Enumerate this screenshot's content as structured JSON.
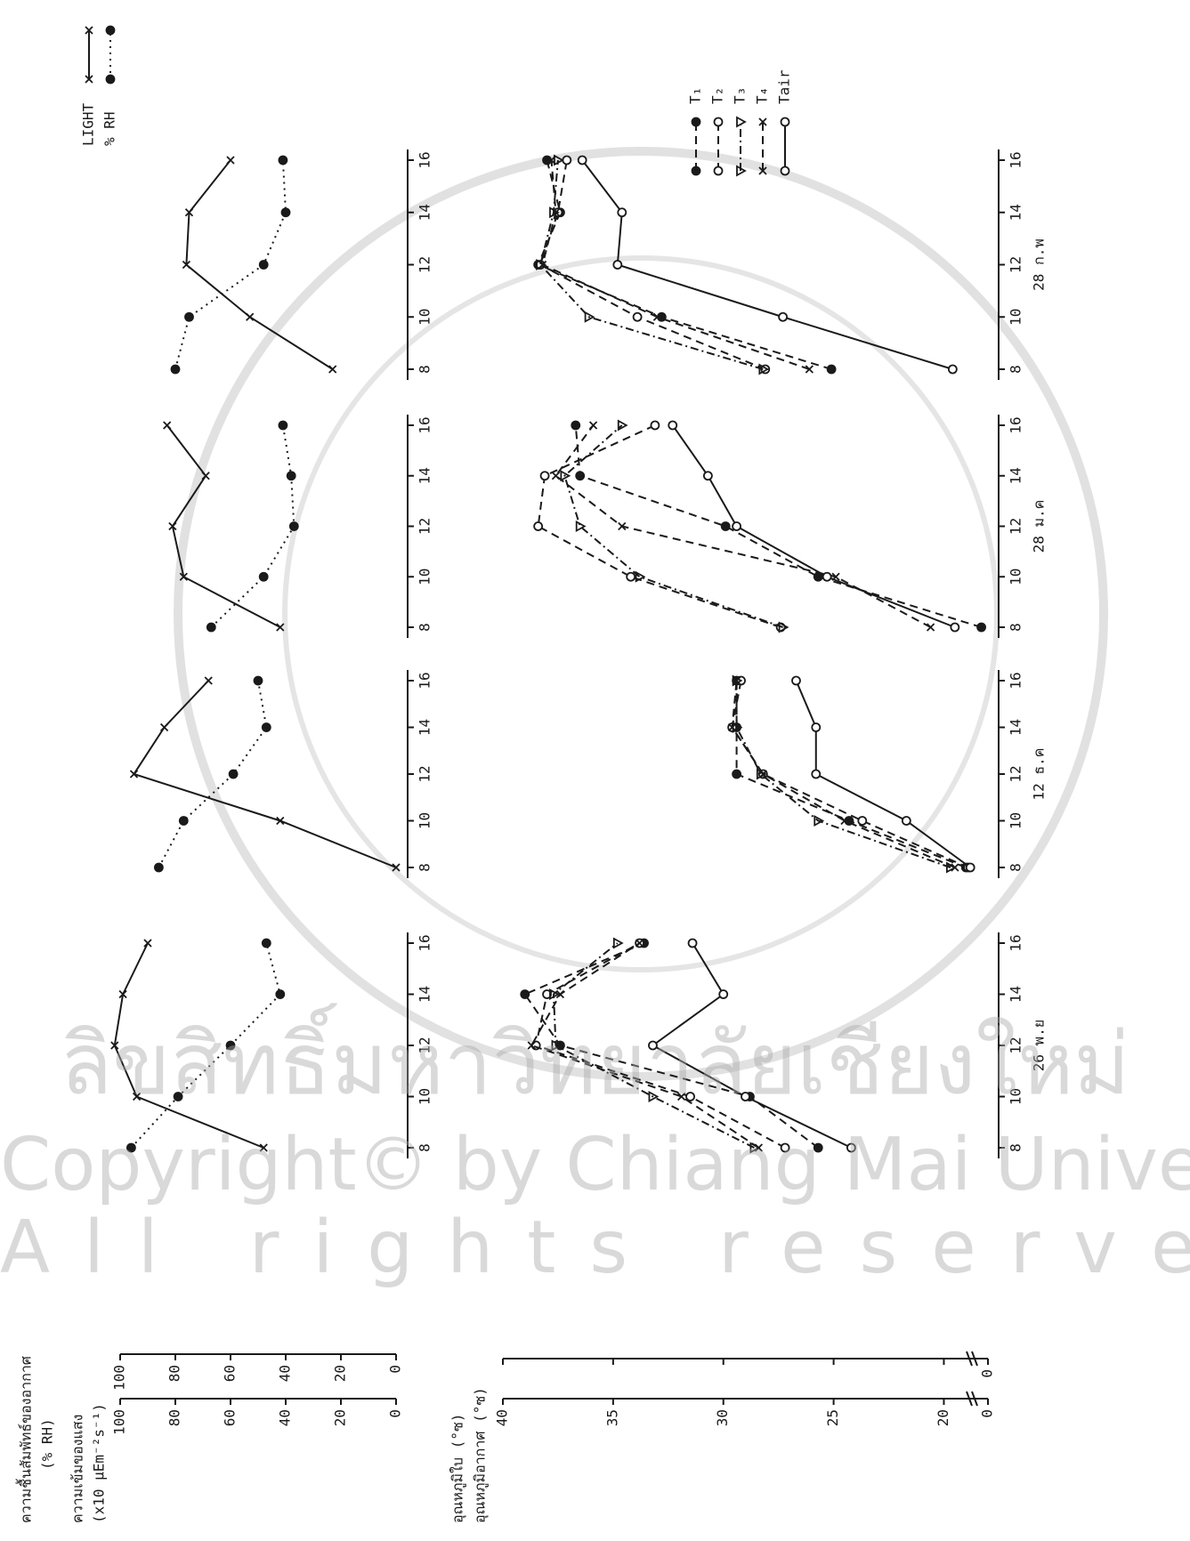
{
  "chart_data": [
    {
      "type": "line",
      "y_title": "ความเข้มของแสง",
      "y_units": "(x10 µEm⁻²s⁻¹)",
      "ylim": [
        0,
        100
      ],
      "yticks": [
        0,
        20,
        40,
        60,
        80,
        100
      ],
      "y2_title": "ความชื้นสัมพัทธ์ของอากาศ",
      "y2_units": "(% RH)",
      "y2lim": [
        0,
        100
      ],
      "y2ticks": [
        0,
        20,
        40,
        60,
        80,
        100
      ],
      "x": [
        8,
        10,
        12,
        14,
        16
      ],
      "xlim": [
        8,
        16
      ],
      "xticks": [
        8,
        10,
        12,
        14,
        16
      ],
      "legend": "top-right",
      "series": [
        {
          "name": "LIGHT",
          "color": "#1a1a1a",
          "dash": "solid",
          "marker": "x",
          "values": [
            [
              48,
              94,
              102,
              99,
              90
            ],
            [
              0,
              42,
              95,
              84,
              68
            ],
            [
              42,
              77,
              81,
              69,
              83
            ],
            [
              23,
              53,
              76,
              75,
              60
            ]
          ]
        },
        {
          "name": "% RH",
          "axis": "y2",
          "color": "#1a1a1a",
          "dash": "dotted",
          "marker": "dot",
          "values": [
            [
              96,
              79,
              60,
              42,
              47
            ],
            [
              86,
              77,
              59,
              47,
              50
            ],
            [
              67,
              48,
              37,
              38,
              41
            ],
            [
              80,
              75,
              48,
              40,
              41
            ]
          ]
        }
      ]
    },
    {
      "type": "line",
      "y_title": "อุณหภูมิใบ (°ซ)",
      "y2_title": "อุณหภูมิอากาศ (°ซ)",
      "ylim": [
        18,
        40
      ],
      "yticks": [
        20,
        25,
        30,
        35,
        40
      ],
      "axis_break_label": "0",
      "x": [
        8,
        10,
        12,
        14,
        16
      ],
      "xlim": [
        8,
        16
      ],
      "xticks": [
        8,
        10,
        12,
        14,
        16
      ],
      "panel_labels": [
        "26 พ.ย",
        "12 ธ.ค",
        "28 ม.ค",
        "28 ก.พ"
      ],
      "legend": "top-right",
      "series": [
        {
          "name": "T₁",
          "color": "#1a1a1a",
          "dash": "dashed",
          "marker": "dot",
          "values": [
            [
              25.7,
              28.8,
              37.4,
              39.0,
              33.6
            ],
            [
              19.0,
              24.3,
              29.4,
              29.4,
              29.4
            ],
            [
              18.3,
              25.7,
              29.9,
              36.5,
              36.7
            ],
            [
              25.1,
              32.8,
              38.4,
              37.4,
              38.0
            ]
          ]
        },
        {
          "name": "T₂",
          "color": "#1a1a1a",
          "dash": "dashed",
          "marker": "circle",
          "values": [
            [
              27.2,
              31.5,
              38.5,
              38.0,
              33.8
            ],
            [
              18.9,
              23.7,
              28.2,
              29.6,
              29.2
            ],
            [
              27.4,
              34.2,
              38.4,
              38.1,
              33.1
            ],
            [
              28.1,
              33.9,
              38.3,
              37.5,
              37.1
            ]
          ]
        },
        {
          "name": "T₃",
          "color": "#1a1a1a",
          "dash": "dashdot",
          "marker": "triangle",
          "values": [
            [
              28.6,
              33.2,
              37.6,
              37.7,
              34.8
            ],
            [
              19.7,
              25.7,
              28.3,
              29.4,
              29.4
            ],
            [
              27.3,
              33.8,
              36.5,
              37.2,
              34.6
            ],
            [
              28.2,
              36.1,
              38.3,
              37.7,
              37.5
            ]
          ]
        },
        {
          "name": "T₄",
          "color": "#1a1a1a",
          "dash": "dashed",
          "marker": "x",
          "values": [
            [
              28.4,
              31.9,
              38.7,
              37.4,
              33.8
            ],
            [
              19.5,
              24.5,
              28.2,
              29.6,
              29.4
            ],
            [
              20.6,
              24.9,
              34.6,
              37.6,
              35.9
            ],
            [
              26.1,
              33.0,
              38.2,
              37.6,
              37.8
            ]
          ]
        },
        {
          "name": "Tair",
          "color": "#1a1a1a",
          "dash": "solid",
          "marker": "circle",
          "values": [
            [
              24.2,
              29.0,
              33.2,
              30.0,
              31.4
            ],
            [
              18.8,
              21.7,
              25.8,
              25.8,
              26.7
            ],
            [
              19.5,
              25.3,
              29.4,
              30.7,
              32.3
            ],
            [
              19.6,
              27.3,
              34.8,
              34.6,
              36.4
            ]
          ]
        }
      ]
    }
  ],
  "watermark": {
    "line1": "ลิขสิทธิ์มหาวิทยาลัยเชียงใหม่",
    "line2": "Copyright© by Chiang Mai University",
    "line3": "All rights reserved"
  }
}
